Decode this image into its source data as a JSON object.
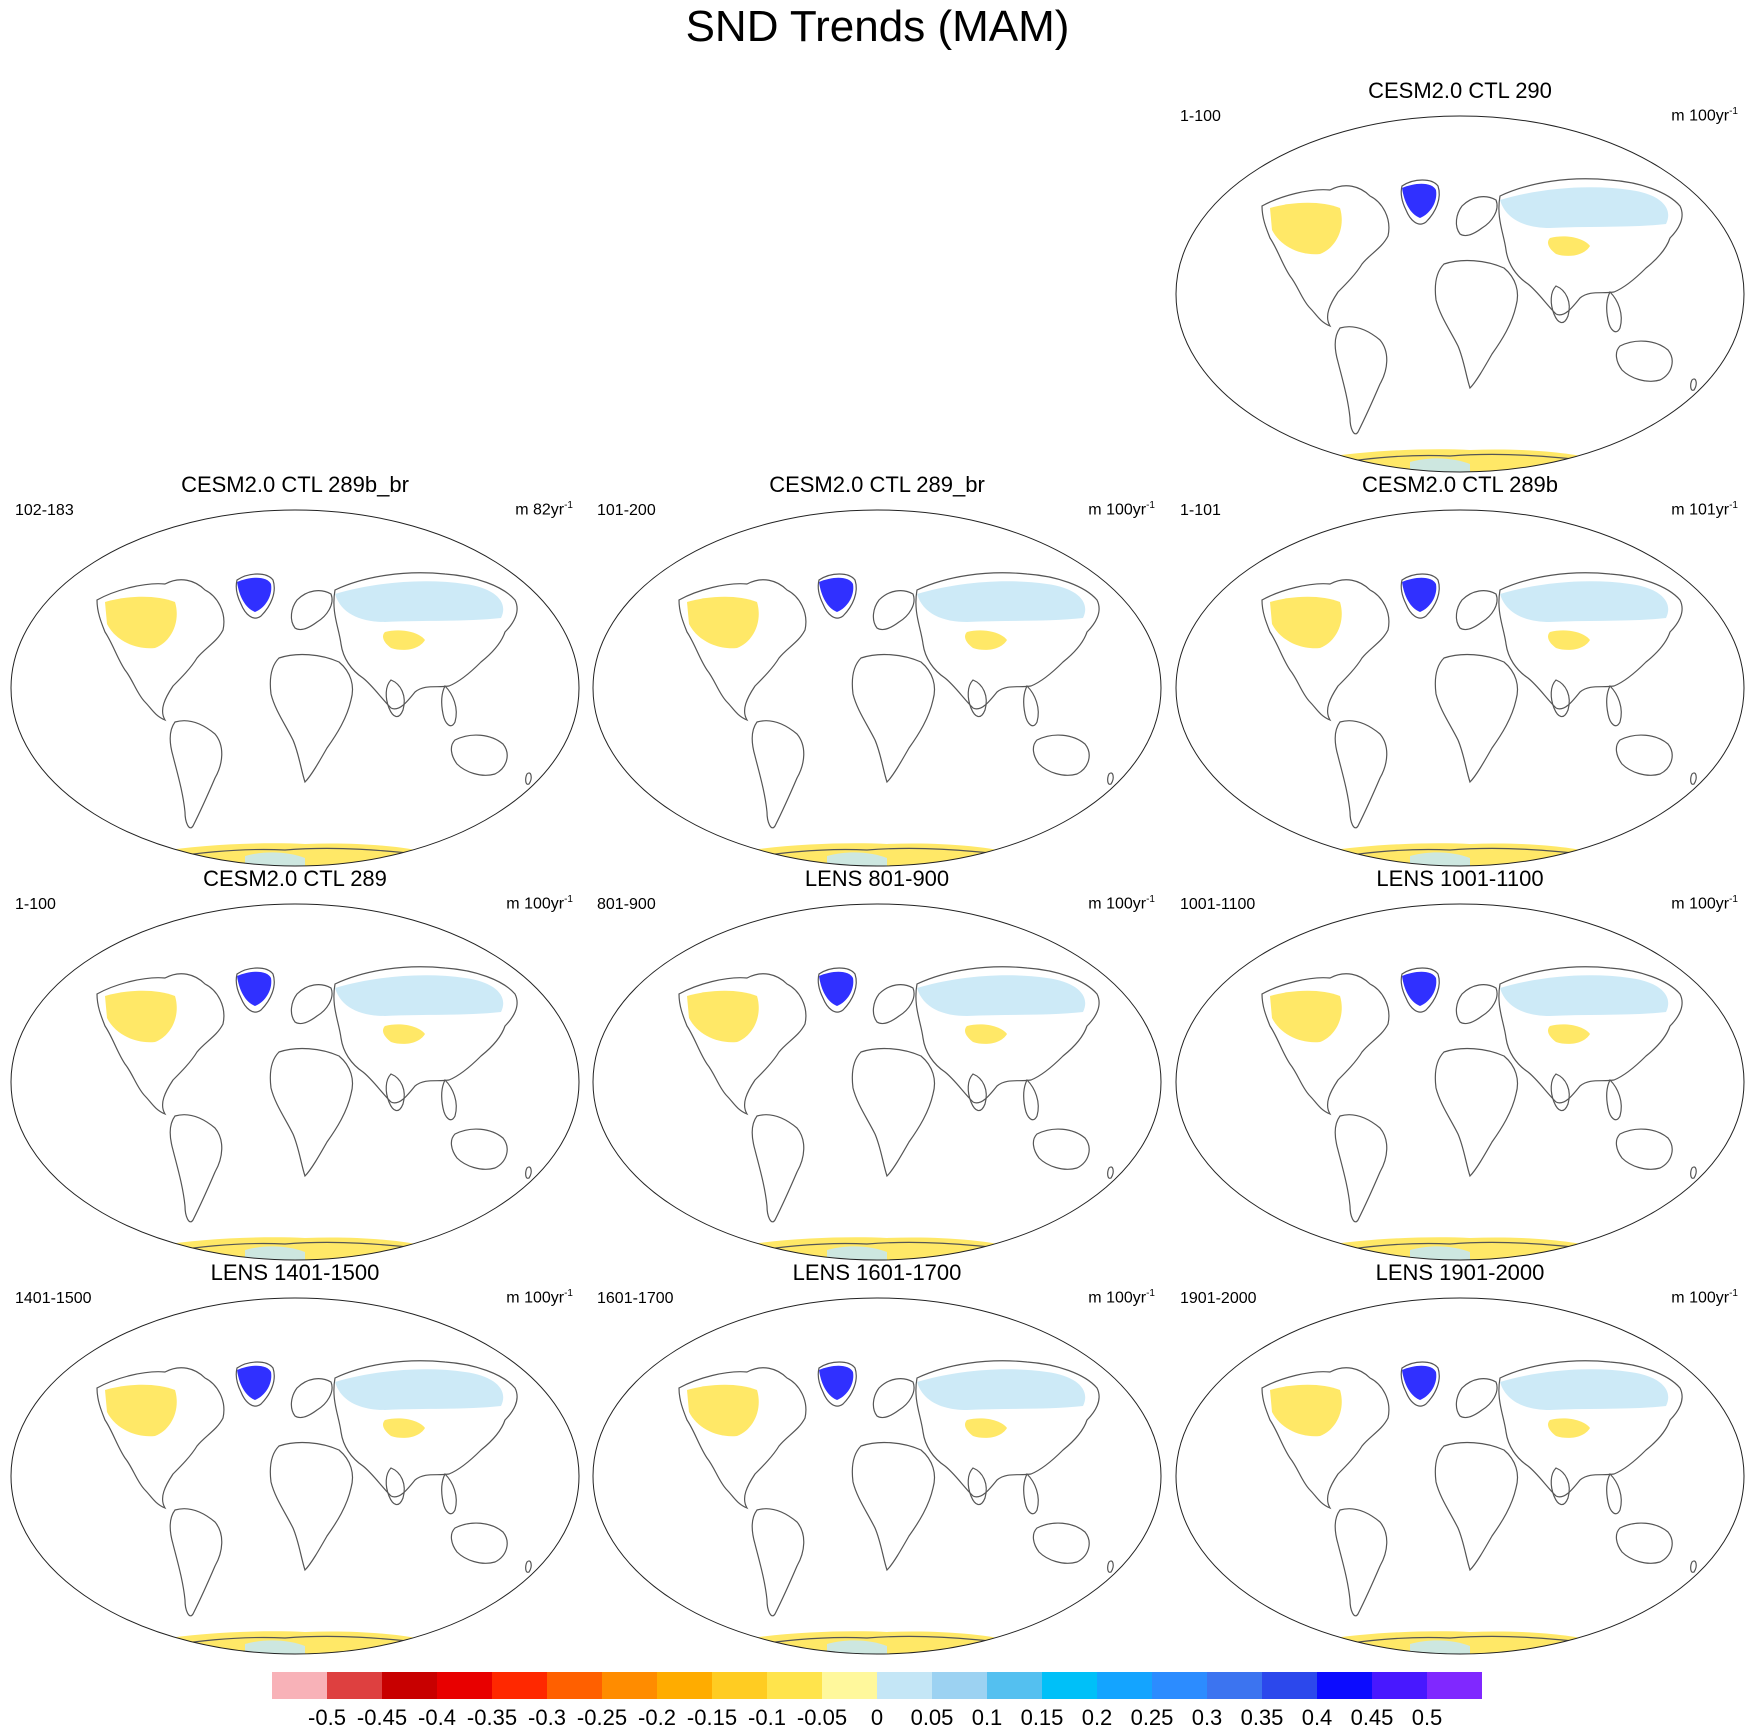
{
  "title": "SND Trends (MAM)",
  "colors": {
    "coast": "#555555",
    "outline": "#222222"
  },
  "panels": [
    {
      "title": "CESM2.0 CTL 290",
      "years": "1-100",
      "unit": "m 100yr",
      "unit_exp": "-1"
    },
    {
      "title": "CESM2.0 CTL 289b_br",
      "years": "102-183",
      "unit": "m 82yr",
      "unit_exp": "-1"
    },
    {
      "title": "CESM2.0 CTL 289_br",
      "years": "101-200",
      "unit": "m 100yr",
      "unit_exp": "-1"
    },
    {
      "title": "CESM2.0 CTL 289b",
      "years": "1-101",
      "unit": "m 101yr",
      "unit_exp": "-1"
    },
    {
      "title": "CESM2.0 CTL 289",
      "years": "1-100",
      "unit": "m 100yr",
      "unit_exp": "-1"
    },
    {
      "title": "LENS 801-900",
      "years": "801-900",
      "unit": "m 100yr",
      "unit_exp": "-1"
    },
    {
      "title": "LENS 1001-1100",
      "years": "1001-1100",
      "unit": "m 100yr",
      "unit_exp": "-1"
    },
    {
      "title": "LENS 1401-1500",
      "years": "1401-1500",
      "unit": "m 100yr",
      "unit_exp": "-1"
    },
    {
      "title": "LENS 1601-1700",
      "years": "1601-1700",
      "unit": "m 100yr",
      "unit_exp": "-1"
    },
    {
      "title": "LENS 1901-2000",
      "years": "1901-2000",
      "unit": "m 100yr",
      "unit_exp": "-1"
    }
  ],
  "colorbar": {
    "colors": [
      "#f8b2b8",
      "#de4040",
      "#c80000",
      "#e80000",
      "#ff2800",
      "#ff6000",
      "#ff8c00",
      "#ffac00",
      "#ffcc22",
      "#ffe44c",
      "#fff89c",
      "#c4e6f6",
      "#9cd2f2",
      "#54c0f0",
      "#00c0f8",
      "#14a4ff",
      "#2c8cff",
      "#3c74f0",
      "#2c48ec",
      "#0c0cff",
      "#4818ff",
      "#8028ff"
    ],
    "labels": [
      "-0.5",
      "-0.45",
      "-0.4",
      "-0.35",
      "-0.3",
      "-0.25",
      "-0.2",
      "-0.15",
      "-0.1",
      "-0.05",
      "0",
      "0.05",
      "0.1",
      "0.15",
      "0.2",
      "0.25",
      "0.3",
      "0.35",
      "0.4",
      "0.45",
      "0.5"
    ]
  }
}
